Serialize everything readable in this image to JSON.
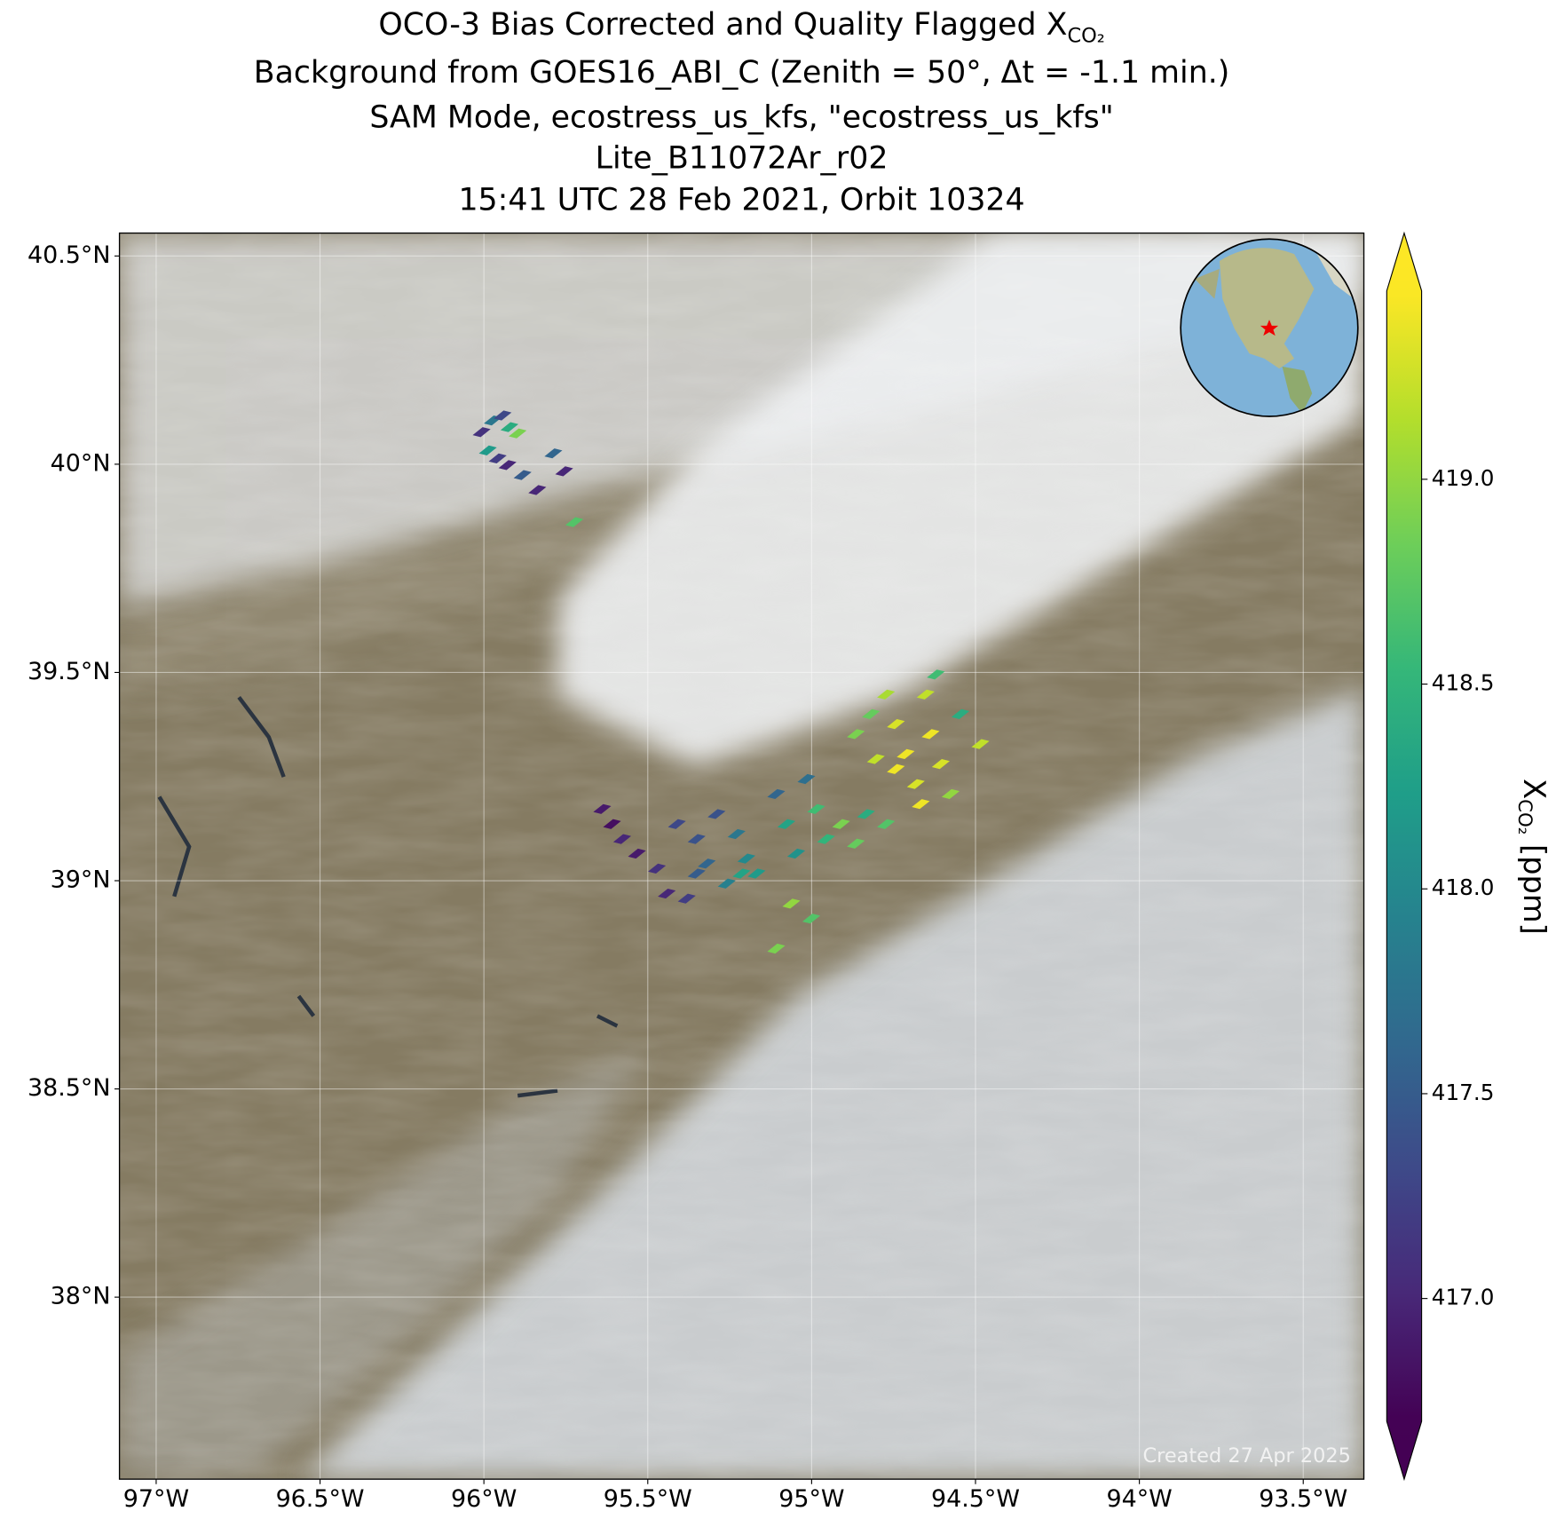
{
  "chart_data": {
    "type": "map",
    "title": "OCO-3 Bias Corrected and Quality Flagged X",
    "title_subscript": "CO₂",
    "subtitle_lines": [
      "Background from GOES16_ABI_C (Zenith = 50°, Δt = -1.1 min.)",
      "SAM Mode, ecostress_us_kfs, \"ecostress_us_kfs\"",
      "Lite_B11072Ar_r02",
      "15:41 UTC 28 Feb 2021, Orbit 10324"
    ],
    "footer": "Created 27 Apr 2025",
    "colorbar_label": "X",
    "colorbar_label_subscript": "CO₂",
    "colorbar_units": " [ppm]",
    "colormap": "viridis",
    "clim": [
      416.7,
      419.46
    ],
    "cticks": [
      {
        "value": 417,
        "label": "417.0"
      },
      417.5,
      {
        "value": 418,
        "label": "418.0"
      },
      418.5,
      {
        "value": 419,
        "label": "419.0"
      }
    ],
    "xlim": [
      -97.112,
      -93.315
    ],
    "ylim": [
      37.563,
      40.555
    ],
    "xticks": [
      {
        "value": -97,
        "label": "97°W"
      },
      {
        "value": -96.5,
        "label": "96.5°W"
      },
      {
        "value": -96,
        "label": "96°W"
      },
      {
        "value": -95.5,
        "label": "95.5°W"
      },
      {
        "value": -95,
        "label": "95°W"
      },
      {
        "value": -94.5,
        "label": "94.5°W"
      },
      {
        "value": -94,
        "label": "94°W"
      },
      {
        "value": -93.5,
        "label": "93.5°W"
      }
    ],
    "yticks": [
      {
        "value": 40.5,
        "label": "40.5°N"
      },
      {
        "value": 40,
        "label": "40°N"
      },
      {
        "value": 39.5,
        "label": "39.5°N"
      },
      {
        "value": 39,
        "label": "39°N"
      },
      {
        "value": 38.5,
        "label": "38.5°N"
      },
      {
        "value": 38,
        "label": "38°N"
      }
    ],
    "grid": true,
    "x": [
      -96.007,
      -95.973,
      -95.943,
      -95.922,
      -95.897,
      -95.988,
      -95.958,
      -95.928,
      -95.882,
      -95.837,
      -95.788,
      -95.755,
      -95.724,
      -95.639,
      -95.609,
      -95.578,
      -95.533,
      -95.472,
      -95.442,
      -95.381,
      -95.411,
      -95.351,
      -95.32,
      -95.29,
      -95.229,
      -95.199,
      -95.168,
      -95.108,
      -95.077,
      -95.047,
      -95.016,
      -94.986,
      -94.956,
      -94.91,
      -94.865,
      -94.834,
      -94.773,
      -95.062,
      -95.001,
      -95.108,
      -95.214,
      -95.259,
      -95.351,
      -94.865,
      -94.819,
      -94.773,
      -94.743,
      -94.713,
      -94.682,
      -94.652,
      -94.637,
      -94.606,
      -94.576,
      -94.621,
      -94.546,
      -94.485,
      -94.743,
      -94.804,
      -94.667
    ],
    "y": [
      40.077,
      40.105,
      40.117,
      40.089,
      40.074,
      40.033,
      40.014,
      39.998,
      39.974,
      39.938,
      40.026,
      39.983,
      39.861,
      39.172,
      39.136,
      39.1,
      39.065,
      39.029,
      38.969,
      38.957,
      39.136,
      39.1,
      39.041,
      39.16,
      39.112,
      39.053,
      39.017,
      39.208,
      39.136,
      39.065,
      39.244,
      39.172,
      39.1,
      39.136,
      39.089,
      39.16,
      39.136,
      38.945,
      38.909,
      38.837,
      39.017,
      38.993,
      39.017,
      39.352,
      39.4,
      39.447,
      39.376,
      39.304,
      39.232,
      39.447,
      39.352,
      39.28,
      39.208,
      39.495,
      39.4,
      39.328,
      39.268,
      39.292,
      39.184
    ],
    "values": [
      417.1,
      417.8,
      417.3,
      418.4,
      418.9,
      418.2,
      417.2,
      417.0,
      417.5,
      417.0,
      417.6,
      417.0,
      418.7,
      416.9,
      416.8,
      417.0,
      416.9,
      417.1,
      417.0,
      417.2,
      417.3,
      417.4,
      417.6,
      417.4,
      417.8,
      418.0,
      418.2,
      417.6,
      418.3,
      418.1,
      417.7,
      418.6,
      418.5,
      418.9,
      418.8,
      418.4,
      418.7,
      419.0,
      418.7,
      418.9,
      418.3,
      417.9,
      417.5,
      418.9,
      418.8,
      419.1,
      419.3,
      419.4,
      419.3,
      419.2,
      419.4,
      419.3,
      419.0,
      418.6,
      418.4,
      419.2,
      419.4,
      419.2,
      419.4
    ]
  }
}
